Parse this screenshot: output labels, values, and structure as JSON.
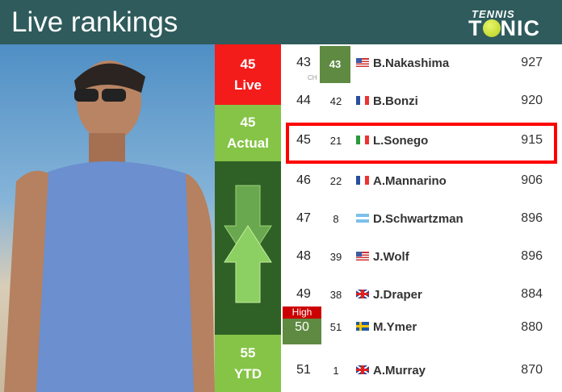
{
  "header": {
    "title": "Live rankings",
    "logo_top": "TENNIS",
    "logo_bottom": "TONIC"
  },
  "left": {
    "live_rank": "45",
    "live_label": "Live",
    "actual_rank": "45",
    "actual_label": "Actual",
    "ytd_rank": "55",
    "ytd_label": "YTD",
    "colors": {
      "live": "#f41b1b",
      "actual": "#85c446",
      "trend": "#2f6126"
    }
  },
  "rows": [
    {
      "rank": "43",
      "prev": "43",
      "prev_note": "CH",
      "flag": "usa",
      "name": "B.Nakashima",
      "points": "927"
    },
    {
      "rank": "44",
      "prev": "42",
      "flag": "france",
      "name": "B.Bonzi",
      "points": "920"
    },
    {
      "rank": "45",
      "prev": "21",
      "flag": "italy",
      "name": "L.Sonego",
      "points": "915",
      "highlight": true
    },
    {
      "rank": "46",
      "prev": "22",
      "flag": "france",
      "name": "A.Mannarino",
      "points": "906"
    },
    {
      "rank": "47",
      "prev": "8",
      "flag": "argentina",
      "name": "D.Schwartzman",
      "points": "896"
    },
    {
      "rank": "48",
      "prev": "39",
      "flag": "usa",
      "name": "J.Wolf",
      "points": "896"
    },
    {
      "rank": "49",
      "prev": "38",
      "flag": "uk",
      "name": "J.Draper",
      "points": "884"
    },
    {
      "rank": "50",
      "rank_badge": "High",
      "prev": "51",
      "flag": "sweden",
      "name": "M.Ymer",
      "points": "880"
    },
    {
      "rank": "51",
      "prev": "1",
      "flag": "uk",
      "name": "A.Murray",
      "points": "870"
    }
  ]
}
